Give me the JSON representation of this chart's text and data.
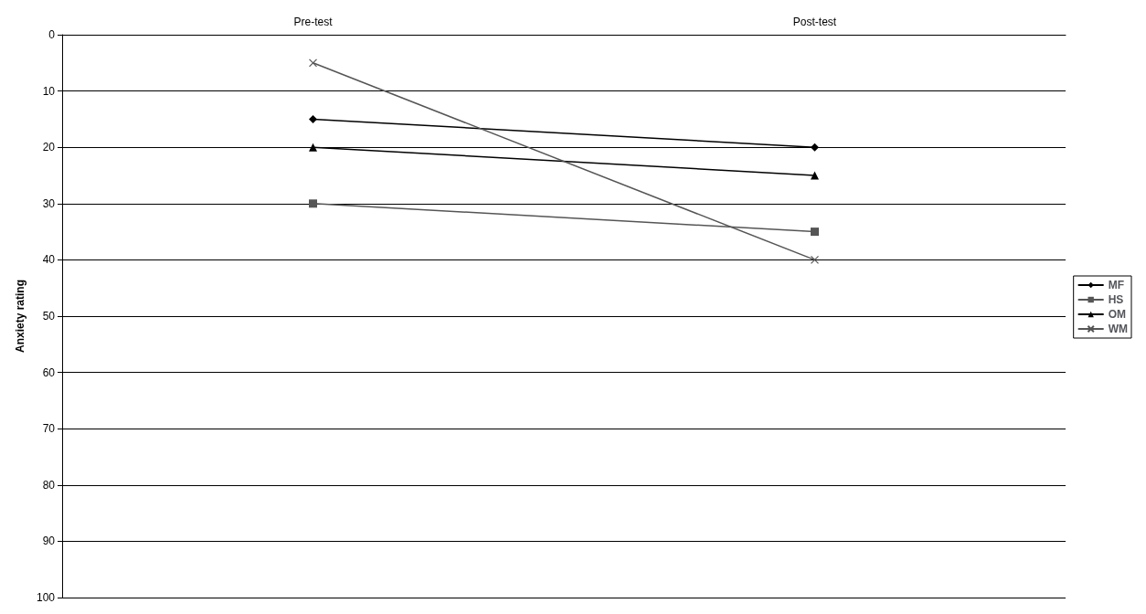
{
  "chart_data": {
    "type": "line",
    "ylabel": "Anxiety rating",
    "categories": [
      "Pre-test",
      "Post-test"
    ],
    "series": [
      {
        "name": "MF",
        "color": "#000000",
        "marker": "diamond",
        "values": [
          15,
          20
        ]
      },
      {
        "name": "HS",
        "color": "#555555",
        "marker": "square",
        "values": [
          30,
          35
        ]
      },
      {
        "name": "OM",
        "color": "#000000",
        "marker": "triangle",
        "values": [
          20,
          25
        ]
      },
      {
        "name": "WM",
        "color": "#555555",
        "marker": "cross",
        "values": [
          5,
          40
        ]
      }
    ],
    "ylim": [
      100,
      0
    ],
    "yticks": [
      0,
      10,
      20,
      30,
      40,
      50,
      60,
      70,
      80,
      90,
      100
    ],
    "grid": "y",
    "legend": "right"
  }
}
